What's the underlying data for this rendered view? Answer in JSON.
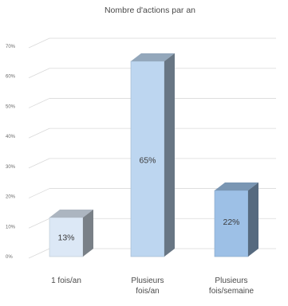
{
  "chart_data": {
    "type": "bar",
    "title": "Nombre d'actions par an",
    "categories": [
      "1 fois/an",
      "Plusieurs fois/an",
      "Plusieurs fois/semaine"
    ],
    "category_lines": [
      [
        "1 fois/an"
      ],
      [
        "Plusieurs",
        "fois/an"
      ],
      [
        "Plusieurs",
        "fois/semaine"
      ]
    ],
    "values": [
      13,
      65,
      22
    ],
    "data_labels": [
      "13%",
      "65%",
      "22%"
    ],
    "ylim": [
      0,
      70
    ],
    "yticks": [
      0,
      10,
      20,
      30,
      40,
      50,
      60,
      70
    ],
    "ytick_labels": [
      "0%",
      "10%",
      "20%",
      "30%",
      "40%",
      "50%",
      "60%",
      "70%"
    ],
    "grid": true,
    "style": "3d-column",
    "colors": {
      "bar_1": "#dce8f6",
      "bar_2": "#bdd6f0",
      "bar_3": "#9dc0e6",
      "grid": "#d9d9d9"
    }
  }
}
